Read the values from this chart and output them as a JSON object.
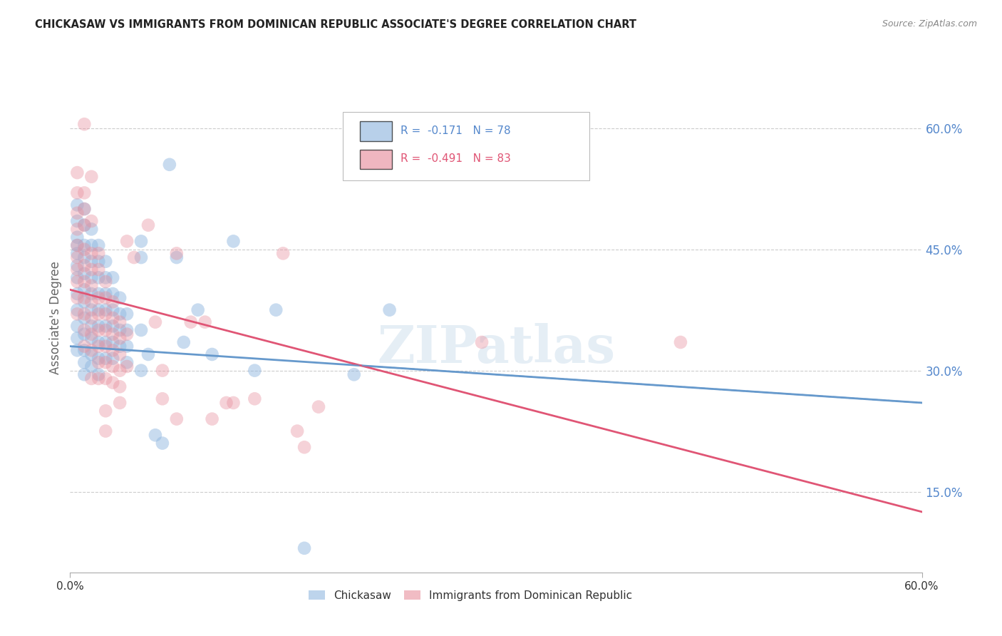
{
  "title": "CHICKASAW VS IMMIGRANTS FROM DOMINICAN REPUBLIC ASSOCIATE'S DEGREE CORRELATION CHART",
  "source": "Source: ZipAtlas.com",
  "ylabel": "Associate's Degree",
  "watermark": "ZIPatlas",
  "ytick_labels": [
    "60.0%",
    "45.0%",
    "30.0%",
    "15.0%"
  ],
  "ytick_values": [
    0.6,
    0.45,
    0.3,
    0.15
  ],
  "xmin": 0.0,
  "xmax": 0.6,
  "ymin": 0.05,
  "ymax": 0.68,
  "legend": {
    "blue_R": "-0.171",
    "blue_N": "78",
    "pink_R": "-0.491",
    "pink_N": "83"
  },
  "blue_color": "#92b8e0",
  "pink_color": "#e8909e",
  "blue_line_color": "#6699cc",
  "pink_line_color": "#e05575",
  "grid_color": "#cccccc",
  "right_axis_color": "#5588cc",
  "blue_scatter": [
    [
      0.005,
      0.505
    ],
    [
      0.005,
      0.485
    ],
    [
      0.005,
      0.465
    ],
    [
      0.005,
      0.455
    ],
    [
      0.005,
      0.445
    ],
    [
      0.005,
      0.43
    ],
    [
      0.005,
      0.415
    ],
    [
      0.005,
      0.395
    ],
    [
      0.005,
      0.375
    ],
    [
      0.005,
      0.355
    ],
    [
      0.005,
      0.34
    ],
    [
      0.005,
      0.325
    ],
    [
      0.01,
      0.5
    ],
    [
      0.01,
      0.48
    ],
    [
      0.01,
      0.455
    ],
    [
      0.01,
      0.44
    ],
    [
      0.01,
      0.42
    ],
    [
      0.01,
      0.4
    ],
    [
      0.01,
      0.385
    ],
    [
      0.01,
      0.365
    ],
    [
      0.01,
      0.345
    ],
    [
      0.01,
      0.325
    ],
    [
      0.01,
      0.31
    ],
    [
      0.01,
      0.295
    ],
    [
      0.015,
      0.475
    ],
    [
      0.015,
      0.455
    ],
    [
      0.015,
      0.435
    ],
    [
      0.015,
      0.415
    ],
    [
      0.015,
      0.395
    ],
    [
      0.015,
      0.375
    ],
    [
      0.015,
      0.355
    ],
    [
      0.015,
      0.34
    ],
    [
      0.015,
      0.32
    ],
    [
      0.015,
      0.305
    ],
    [
      0.02,
      0.455
    ],
    [
      0.02,
      0.435
    ],
    [
      0.02,
      0.415
    ],
    [
      0.02,
      0.395
    ],
    [
      0.02,
      0.375
    ],
    [
      0.02,
      0.355
    ],
    [
      0.02,
      0.335
    ],
    [
      0.02,
      0.315
    ],
    [
      0.02,
      0.295
    ],
    [
      0.025,
      0.435
    ],
    [
      0.025,
      0.415
    ],
    [
      0.025,
      0.395
    ],
    [
      0.025,
      0.375
    ],
    [
      0.025,
      0.355
    ],
    [
      0.025,
      0.335
    ],
    [
      0.025,
      0.315
    ],
    [
      0.03,
      0.415
    ],
    [
      0.03,
      0.395
    ],
    [
      0.03,
      0.375
    ],
    [
      0.03,
      0.355
    ],
    [
      0.03,
      0.335
    ],
    [
      0.03,
      0.315
    ],
    [
      0.035,
      0.39
    ],
    [
      0.035,
      0.37
    ],
    [
      0.035,
      0.35
    ],
    [
      0.035,
      0.33
    ],
    [
      0.04,
      0.37
    ],
    [
      0.04,
      0.35
    ],
    [
      0.04,
      0.33
    ],
    [
      0.04,
      0.31
    ],
    [
      0.05,
      0.46
    ],
    [
      0.05,
      0.44
    ],
    [
      0.05,
      0.35
    ],
    [
      0.05,
      0.3
    ],
    [
      0.055,
      0.32
    ],
    [
      0.06,
      0.22
    ],
    [
      0.065,
      0.21
    ],
    [
      0.07,
      0.555
    ],
    [
      0.075,
      0.44
    ],
    [
      0.08,
      0.335
    ],
    [
      0.09,
      0.375
    ],
    [
      0.1,
      0.32
    ],
    [
      0.115,
      0.46
    ],
    [
      0.13,
      0.3
    ],
    [
      0.145,
      0.375
    ],
    [
      0.165,
      0.08
    ],
    [
      0.2,
      0.295
    ],
    [
      0.225,
      0.375
    ]
  ],
  "pink_scatter": [
    [
      0.005,
      0.545
    ],
    [
      0.005,
      0.52
    ],
    [
      0.005,
      0.495
    ],
    [
      0.005,
      0.475
    ],
    [
      0.005,
      0.455
    ],
    [
      0.005,
      0.44
    ],
    [
      0.005,
      0.425
    ],
    [
      0.005,
      0.41
    ],
    [
      0.005,
      0.39
    ],
    [
      0.005,
      0.37
    ],
    [
      0.01,
      0.605
    ],
    [
      0.01,
      0.52
    ],
    [
      0.01,
      0.5
    ],
    [
      0.01,
      0.48
    ],
    [
      0.01,
      0.45
    ],
    [
      0.01,
      0.43
    ],
    [
      0.01,
      0.41
    ],
    [
      0.01,
      0.39
    ],
    [
      0.01,
      0.37
    ],
    [
      0.01,
      0.35
    ],
    [
      0.01,
      0.33
    ],
    [
      0.015,
      0.54
    ],
    [
      0.015,
      0.485
    ],
    [
      0.015,
      0.445
    ],
    [
      0.015,
      0.425
    ],
    [
      0.015,
      0.405
    ],
    [
      0.015,
      0.385
    ],
    [
      0.015,
      0.365
    ],
    [
      0.015,
      0.345
    ],
    [
      0.015,
      0.325
    ],
    [
      0.015,
      0.29
    ],
    [
      0.02,
      0.445
    ],
    [
      0.02,
      0.425
    ],
    [
      0.02,
      0.39
    ],
    [
      0.02,
      0.37
    ],
    [
      0.02,
      0.35
    ],
    [
      0.02,
      0.33
    ],
    [
      0.02,
      0.31
    ],
    [
      0.02,
      0.29
    ],
    [
      0.025,
      0.41
    ],
    [
      0.025,
      0.39
    ],
    [
      0.025,
      0.37
    ],
    [
      0.025,
      0.35
    ],
    [
      0.025,
      0.33
    ],
    [
      0.025,
      0.31
    ],
    [
      0.025,
      0.29
    ],
    [
      0.025,
      0.25
    ],
    [
      0.025,
      0.225
    ],
    [
      0.03,
      0.385
    ],
    [
      0.03,
      0.365
    ],
    [
      0.03,
      0.345
    ],
    [
      0.03,
      0.325
    ],
    [
      0.03,
      0.305
    ],
    [
      0.03,
      0.285
    ],
    [
      0.035,
      0.36
    ],
    [
      0.035,
      0.34
    ],
    [
      0.035,
      0.32
    ],
    [
      0.035,
      0.3
    ],
    [
      0.035,
      0.28
    ],
    [
      0.035,
      0.26
    ],
    [
      0.04,
      0.46
    ],
    [
      0.04,
      0.345
    ],
    [
      0.04,
      0.305
    ],
    [
      0.045,
      0.44
    ],
    [
      0.055,
      0.48
    ],
    [
      0.06,
      0.36
    ],
    [
      0.065,
      0.3
    ],
    [
      0.065,
      0.265
    ],
    [
      0.075,
      0.445
    ],
    [
      0.075,
      0.24
    ],
    [
      0.085,
      0.36
    ],
    [
      0.095,
      0.36
    ],
    [
      0.1,
      0.24
    ],
    [
      0.11,
      0.26
    ],
    [
      0.115,
      0.26
    ],
    [
      0.13,
      0.265
    ],
    [
      0.15,
      0.445
    ],
    [
      0.16,
      0.225
    ],
    [
      0.165,
      0.205
    ],
    [
      0.175,
      0.255
    ],
    [
      0.29,
      0.335
    ],
    [
      0.43,
      0.335
    ]
  ],
  "blue_regression": {
    "x_start": 0.0,
    "y_start": 0.33,
    "x_end": 0.6,
    "y_end": 0.26
  },
  "pink_regression": {
    "x_start": 0.0,
    "y_start": 0.4,
    "x_end": 0.6,
    "y_end": 0.125
  }
}
